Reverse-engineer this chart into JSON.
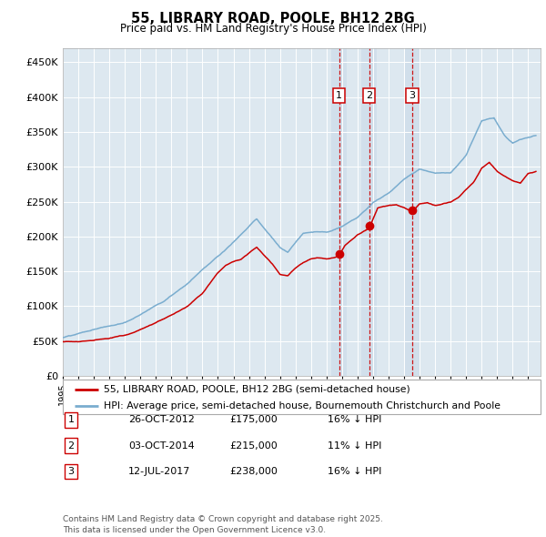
{
  "title": "55, LIBRARY ROAD, POOLE, BH12 2BG",
  "subtitle": "Price paid vs. HM Land Registry's House Price Index (HPI)",
  "red_label": "55, LIBRARY ROAD, POOLE, BH12 2BG (semi-detached house)",
  "blue_label": "HPI: Average price, semi-detached house, Bournemouth Christchurch and Poole",
  "red_color": "#cc0000",
  "blue_color": "#7aadcf",
  "background_color": "#dde8f0",
  "grid_color": "#ffffff",
  "transactions": [
    {
      "num": 1,
      "date": "26-OCT-2012",
      "date_decimal": 2012.82,
      "price": 175000,
      "label": "16% ↓ HPI"
    },
    {
      "num": 2,
      "date": "03-OCT-2014",
      "date_decimal": 2014.75,
      "price": 215000,
      "label": "11% ↓ HPI"
    },
    {
      "num": 3,
      "date": "12-JUL-2017",
      "date_decimal": 2017.53,
      "price": 238000,
      "label": "16% ↓ HPI"
    }
  ],
  "ylim": [
    0,
    470000
  ],
  "xlim_start": 1995.0,
  "xlim_end": 2025.8,
  "yticks": [
    0,
    50000,
    100000,
    150000,
    200000,
    250000,
    300000,
    350000,
    400000,
    450000
  ],
  "ytick_labels": [
    "£0",
    "£50K",
    "£100K",
    "£150K",
    "£200K",
    "£250K",
    "£300K",
    "£350K",
    "£400K",
    "£450K"
  ],
  "footer": "Contains HM Land Registry data © Crown copyright and database right 2025.\nThis data is licensed under the Open Government Licence v3.0.",
  "vline_color": "#cc0000",
  "highlight_fill": "#c8d8e8",
  "blue_anchors": [
    [
      1995.0,
      55000
    ],
    [
      1997.0,
      68000
    ],
    [
      1999.0,
      80000
    ],
    [
      2001.5,
      110000
    ],
    [
      2003.0,
      135000
    ],
    [
      2004.5,
      165000
    ],
    [
      2006.0,
      195000
    ],
    [
      2007.5,
      228000
    ],
    [
      2009.0,
      185000
    ],
    [
      2009.5,
      178000
    ],
    [
      2010.5,
      205000
    ],
    [
      2011.5,
      208000
    ],
    [
      2012.0,
      207000
    ],
    [
      2013.0,
      215000
    ],
    [
      2014.0,
      228000
    ],
    [
      2015.0,
      250000
    ],
    [
      2016.0,
      265000
    ],
    [
      2017.0,
      285000
    ],
    [
      2018.0,
      300000
    ],
    [
      2019.0,
      295000
    ],
    [
      2020.0,
      295000
    ],
    [
      2021.0,
      320000
    ],
    [
      2022.0,
      370000
    ],
    [
      2022.8,
      375000
    ],
    [
      2023.5,
      350000
    ],
    [
      2024.0,
      340000
    ],
    [
      2024.5,
      345000
    ],
    [
      2025.5,
      350000
    ]
  ],
  "red_anchors": [
    [
      1995.0,
      49000
    ],
    [
      1996.0,
      50000
    ],
    [
      1997.0,
      52000
    ],
    [
      1998.0,
      55000
    ],
    [
      1999.0,
      60000
    ],
    [
      2000.0,
      68000
    ],
    [
      2001.0,
      78000
    ],
    [
      2002.0,
      88000
    ],
    [
      2003.0,
      100000
    ],
    [
      2004.0,
      120000
    ],
    [
      2005.0,
      150000
    ],
    [
      2005.5,
      160000
    ],
    [
      2006.5,
      170000
    ],
    [
      2007.5,
      188000
    ],
    [
      2008.5,
      165000
    ],
    [
      2009.0,
      150000
    ],
    [
      2009.5,
      148000
    ],
    [
      2010.0,
      158000
    ],
    [
      2010.5,
      165000
    ],
    [
      2011.0,
      170000
    ],
    [
      2011.5,
      172000
    ],
    [
      2012.0,
      170000
    ],
    [
      2012.5,
      172000
    ],
    [
      2012.82,
      175000
    ],
    [
      2013.2,
      190000
    ],
    [
      2014.0,
      205000
    ],
    [
      2014.75,
      215000
    ],
    [
      2015.3,
      245000
    ],
    [
      2016.0,
      248000
    ],
    [
      2016.5,
      250000
    ],
    [
      2017.0,
      245000
    ],
    [
      2017.53,
      238000
    ],
    [
      2018.0,
      250000
    ],
    [
      2018.5,
      252000
    ],
    [
      2019.0,
      248000
    ],
    [
      2019.5,
      250000
    ],
    [
      2020.0,
      252000
    ],
    [
      2020.5,
      258000
    ],
    [
      2021.0,
      270000
    ],
    [
      2021.5,
      280000
    ],
    [
      2022.0,
      300000
    ],
    [
      2022.5,
      308000
    ],
    [
      2023.0,
      295000
    ],
    [
      2023.5,
      288000
    ],
    [
      2024.0,
      282000
    ],
    [
      2024.5,
      278000
    ],
    [
      2025.0,
      292000
    ],
    [
      2025.5,
      295000
    ]
  ]
}
